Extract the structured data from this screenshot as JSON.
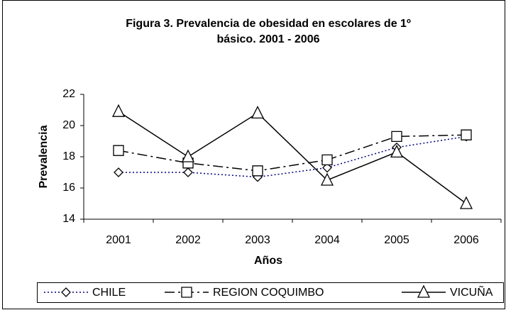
{
  "chart_data": {
    "type": "line",
    "title": [
      "Figura 3. Prevalencia de obesidad en escolares de 1º",
      "básico. 2001 - 2006"
    ],
    "x_label": "Años",
    "y_label": "Prevalencia",
    "categories": [
      "2001",
      "2002",
      "2003",
      "2004",
      "2005",
      "2006"
    ],
    "series": [
      {
        "name": "CHILE",
        "color": "#000080",
        "dash": "dotted",
        "marker": "diamond",
        "values": [
          17.0,
          17.0,
          16.7,
          17.3,
          18.6,
          19.3
        ]
      },
      {
        "name": "REGION COQUIMBO",
        "color": "#000000",
        "dash": "dashdot",
        "marker": "square",
        "values": [
          18.4,
          17.6,
          17.1,
          17.8,
          19.3,
          19.4
        ]
      },
      {
        "name": "VICUÑA",
        "color": "#000000",
        "dash": "solid",
        "marker": "triangle",
        "values": [
          20.9,
          18.0,
          20.8,
          16.5,
          18.3,
          15.0
        ]
      }
    ],
    "ylim": [
      14,
      22
    ],
    "yticks": [
      14,
      16,
      18,
      20,
      22
    ],
    "grid": false,
    "legend": "bottom"
  }
}
